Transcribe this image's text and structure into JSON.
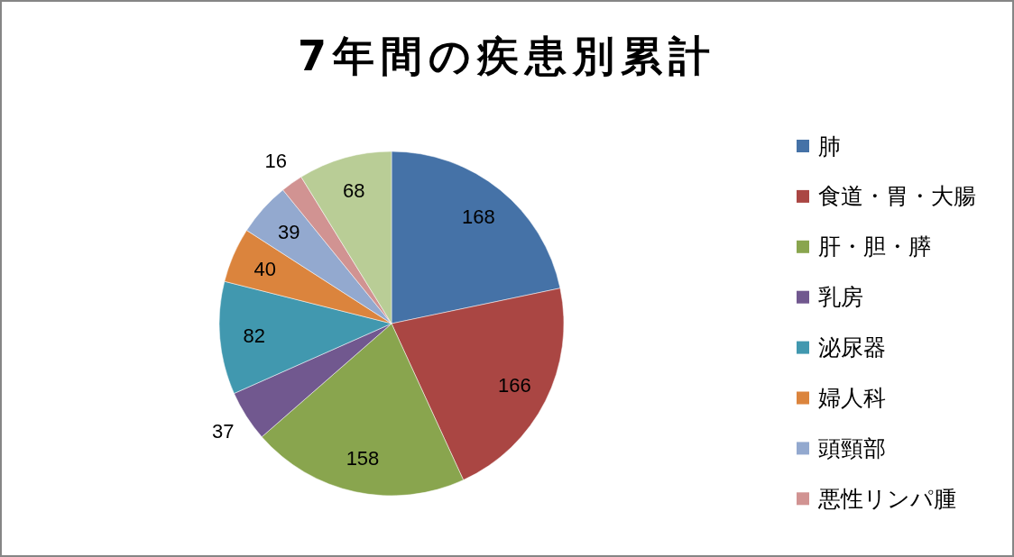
{
  "chart_data": {
    "type": "pie",
    "title": "7年間の疾患別累計",
    "categories": [
      "肺",
      "食道・胃・大腸",
      "肝・胆・膵",
      "乳房",
      "泌尿器",
      "婦人科",
      "頭頸部",
      "悪性リンパ腫",
      null
    ],
    "values": [
      168,
      166,
      158,
      37,
      82,
      40,
      39,
      16,
      68
    ],
    "colors": [
      "#4572a7",
      "#aa4643",
      "#89a54e",
      "#71588f",
      "#4198af",
      "#db843d",
      "#93a9cf",
      "#d19392",
      "#b9cd96"
    ],
    "data_labels": true,
    "legend": "right"
  }
}
